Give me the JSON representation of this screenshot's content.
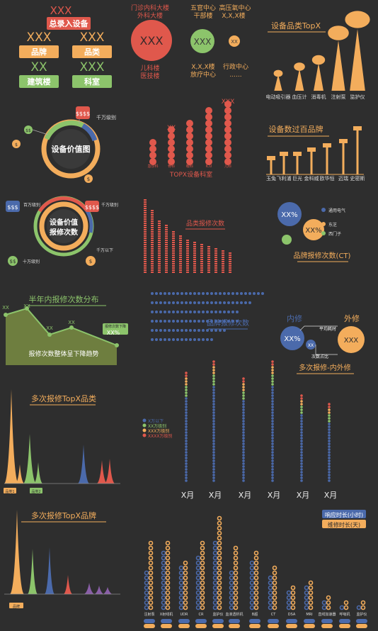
{
  "palette": {
    "bg": "#2e2e2e",
    "orange": "#f3ad5c",
    "red": "#e0584c",
    "green": "#8cc46b",
    "blue": "#4b6aab",
    "purple": "#8a5fa8",
    "dark": "#3c3c3c"
  },
  "header": {
    "xxx_top": "XXX",
    "title": "总录入设备",
    "boxes": [
      {
        "value": "XXX",
        "label": "品牌"
      },
      {
        "value": "XXX",
        "label": "品类"
      },
      {
        "value": "XX",
        "label": "建筑楼"
      },
      {
        "value": "XXX",
        "label": "科室"
      }
    ]
  },
  "buildings": {
    "top_left": [
      "门诊内科大楼",
      "外科大楼"
    ],
    "top_mid": [
      "五官中心",
      "干部楼"
    ],
    "top_right": [
      "高压氧中心",
      "X,X,X楼"
    ],
    "bubbles": [
      "XXX",
      "XXX",
      "XX"
    ],
    "bottom_left": [
      "儿科楼",
      "医技楼"
    ],
    "bottom_mid": [
      "X,X,X楼",
      "放疗中心"
    ],
    "bottom_right": [
      "行政中心",
      "......"
    ]
  },
  "value_ring": {
    "title": "设备价值图",
    "tags": [
      "$$$$",
      "$$",
      "$",
      "$$$$",
      "$"
    ],
    "note": "千万级别"
  },
  "value_repair": {
    "title": [
      "设备价值",
      "报修次数"
    ],
    "tags": [
      "$$$",
      "$$$$",
      "$$",
      "$"
    ],
    "notes": [
      "百万级别",
      "千万级别",
      "十万级别",
      "千万以下"
    ]
  },
  "category_topx": {
    "title": "设备品类TopX",
    "labels": [
      "电动吸引器",
      "血压计",
      "消毒机",
      "注射泵",
      "监护仪"
    ],
    "values": [
      1,
      2,
      3,
      7,
      9
    ]
  },
  "brand_over100": {
    "title": "设备数过百品牌",
    "labels": [
      "玉兔",
      "飞利浦",
      "巨光",
      "金科威",
      "欧华恒",
      "迈瑞",
      "史密斯"
    ],
    "values": [
      2,
      3,
      3,
      4,
      5,
      6,
      9
    ]
  },
  "dept_topx": {
    "title": "TOPX设备科室",
    "top": "XXX",
    "second": "XX",
    "values": [
      4,
      6,
      7,
      9,
      10
    ],
    "labels": [
      "急诊科",
      "骨科",
      "眼科",
      "ICU",
      "儿科"
    ]
  },
  "cat_repair": {
    "title": "品类报修次数",
    "values": [
      7,
      6,
      5,
      4.5,
      4,
      3.5,
      3.2,
      3,
      2.7,
      2.5,
      2.3,
      2.1,
      2
    ]
  },
  "brand_repair_ct": {
    "title": "品牌报修次数(CT)",
    "bubbles": [
      "XX%",
      "XX%",
      ""
    ],
    "legend": [
      "通用电气",
      "东芝",
      "西门子"
    ]
  },
  "half_year": {
    "title": "半年内报修次数分布",
    "labels": [
      "XX",
      "XX",
      "XX",
      "XX",
      "XX"
    ],
    "values": [
      83,
      92,
      55,
      65,
      40
    ],
    "note": "报修次数下降",
    "note_value": "XX%",
    "subtitle": "报修次数整体呈下降趋势"
  },
  "brand_dots": {
    "title": "品牌报修次数",
    "rows": [
      9,
      8,
      7,
      7,
      6,
      5
    ]
  },
  "inout": {
    "left": "内修",
    "right": "外修",
    "bubbles": [
      "XX%",
      "XX",
      "XXX"
    ],
    "labels": [
      "平均耗时",
      "次数占比"
    ],
    "title": "多次报修-内外修"
  },
  "multi_cat": {
    "title": "多次报修TopX品类",
    "tags": [
      "品类1",
      "品类2",
      "",
      ""
    ]
  },
  "month_dots": {
    "legend": [
      "X万以下",
      "XX万级别",
      "XXX万级别",
      "XXXX万级别"
    ],
    "months": [
      "X月",
      "X月",
      "X月",
      "X月",
      "X月",
      "X月"
    ],
    "values": [
      [
        30,
        4,
        3,
        2
      ],
      [
        34,
        4,
        3,
        2
      ],
      [
        29,
        3,
        3,
        2
      ],
      [
        34,
        4,
        3,
        2
      ],
      [
        24,
        3,
        2,
        2
      ],
      [
        21,
        3,
        2,
        2
      ]
    ]
  },
  "multi_brand": {
    "title": "多次报修TopX品牌",
    "tags": [
      "品牌",
      "",
      "",
      ""
    ]
  },
  "response": {
    "legend": [
      "响应时长(小时)",
      "维修时长(天)"
    ],
    "names": [
      "注射泵",
      "X射线机",
      "UDR",
      "CR",
      "监护仪",
      "血液透析机",
      "B超",
      "CT",
      "DSA",
      "MRI",
      "直线加速器",
      "呼吸机",
      "监护仪"
    ],
    "values": [
      [
        8,
        14
      ],
      [
        12,
        14
      ],
      [
        9,
        10
      ],
      [
        11,
        14
      ],
      [
        14,
        19
      ],
      [
        8,
        13
      ],
      [
        10,
        12
      ],
      [
        7,
        9
      ],
      [
        4,
        5
      ],
      [
        5,
        6
      ],
      [
        2,
        3
      ],
      [
        1,
        2
      ],
      [
        1,
        2
      ]
    ]
  }
}
